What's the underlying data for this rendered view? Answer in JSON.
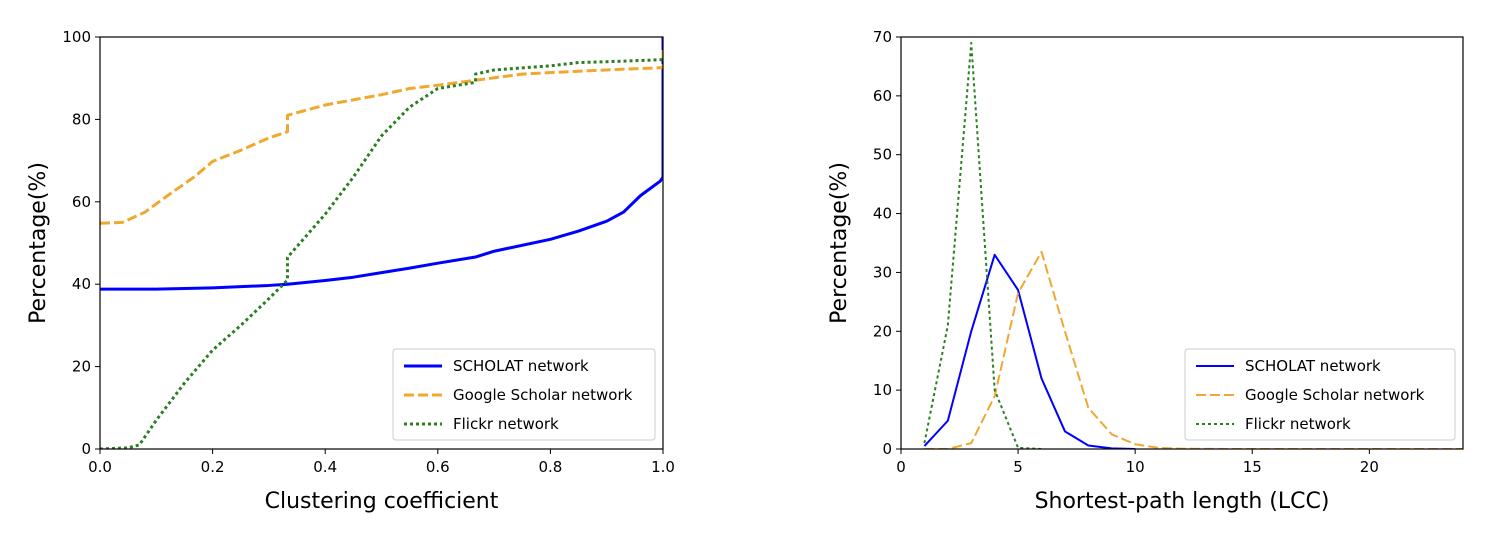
{
  "chart_data": [
    {
      "type": "line",
      "xlabel": "Clustering coefficient",
      "ylabel": "Percentage(%)",
      "xlim": [
        0,
        1
      ],
      "ylim": [
        0,
        100
      ],
      "xticks": [
        "0.0",
        "0.2",
        "0.4",
        "0.6",
        "0.8",
        "1.0"
      ],
      "yticks": [
        "0",
        "20",
        "40",
        "60",
        "80",
        "100"
      ],
      "legend_position": "bottom-right",
      "grid": false,
      "series": [
        {
          "name": "SCHOLAT network",
          "color": "#0000ff",
          "dash": "solid",
          "x": [
            0,
            0.1,
            0.2,
            0.3,
            0.333,
            0.4,
            0.45,
            0.5,
            0.55,
            0.6,
            0.667,
            0.7,
            0.8,
            0.85,
            0.9,
            0.93,
            0.96,
            0.98,
            0.995,
            1.0,
            1.0
          ],
          "y": [
            38.8,
            38.8,
            39.1,
            39.7,
            40.0,
            40.9,
            41.7,
            42.8,
            43.9,
            45.1,
            46.6,
            48.0,
            50.9,
            52.9,
            55.3,
            57.5,
            61.5,
            63.5,
            65.0,
            66.0,
            100
          ]
        },
        {
          "name": "Google Scholar network",
          "color": "#f0a830",
          "dash": "dashed",
          "x": [
            0,
            0.04,
            0.08,
            0.12,
            0.167,
            0.2,
            0.25,
            0.3,
            0.333,
            0.333,
            0.4,
            0.5,
            0.55,
            0.6,
            0.667,
            0.75,
            0.85,
            0.95,
            0.99,
            1.0,
            1.0
          ],
          "y": [
            54.8,
            55.0,
            57.5,
            61.5,
            66.0,
            69.8,
            72.5,
            75.5,
            77.0,
            81.0,
            83.5,
            86.0,
            87.5,
            88.3,
            89.5,
            91.0,
            91.7,
            92.3,
            92.5,
            92.6,
            97.5
          ]
        },
        {
          "name": "Flickr network",
          "color": "#2a8020",
          "dash": "dotted",
          "x": [
            0,
            0.05,
            0.07,
            0.1,
            0.15,
            0.2,
            0.25,
            0.3,
            0.333,
            0.333,
            0.4,
            0.45,
            0.5,
            0.55,
            0.6,
            0.667,
            0.667,
            0.7,
            0.75,
            0.8,
            0.85,
            0.9,
            1.0
          ],
          "y": [
            0,
            0.3,
            1.0,
            7.0,
            16.0,
            24.0,
            30.0,
            36.5,
            41.0,
            46.5,
            57.0,
            66.0,
            76.0,
            83.0,
            87.5,
            89.0,
            91.0,
            92.0,
            92.5,
            93.0,
            93.8,
            94.0,
            94.5
          ]
        }
      ]
    },
    {
      "type": "line",
      "xlabel": "Shortest-path length (LCC)",
      "ylabel": "Percentage(%)",
      "xlim": [
        0,
        24
      ],
      "ylim": [
        0,
        70
      ],
      "xticks": [
        "0",
        "5",
        "10",
        "15",
        "20"
      ],
      "yticks": [
        "0",
        "10",
        "20",
        "30",
        "40",
        "50",
        "60",
        "70"
      ],
      "legend_position": "bottom-right",
      "grid": false,
      "series": [
        {
          "name": "SCHOLAT network",
          "color": "#0000ff",
          "dash": "solid",
          "x": [
            1,
            2,
            3,
            4,
            5,
            6,
            7,
            8,
            9,
            10
          ],
          "y": [
            0.5,
            4.8,
            20.0,
            33.0,
            27.0,
            12.0,
            3.0,
            0.6,
            0.1,
            0
          ]
        },
        {
          "name": "Google Scholar network",
          "color": "#f0a830",
          "dash": "dashed",
          "x": [
            1,
            2,
            3,
            4,
            5,
            6,
            7,
            8,
            9,
            10,
            11,
            12,
            14,
            16,
            18,
            20,
            22,
            24
          ],
          "y": [
            0,
            0,
            1.0,
            9.0,
            26.5,
            33.5,
            20.0,
            7.0,
            2.5,
            0.8,
            0.2,
            0.05,
            0,
            0,
            0,
            0,
            0,
            0
          ]
        },
        {
          "name": "Flickr network",
          "color": "#2a8020",
          "dash": "dotted",
          "x": [
            1,
            2,
            3,
            4,
            5,
            6
          ],
          "y": [
            1.0,
            21.0,
            69.0,
            10.0,
            0.2,
            0
          ]
        }
      ]
    }
  ]
}
